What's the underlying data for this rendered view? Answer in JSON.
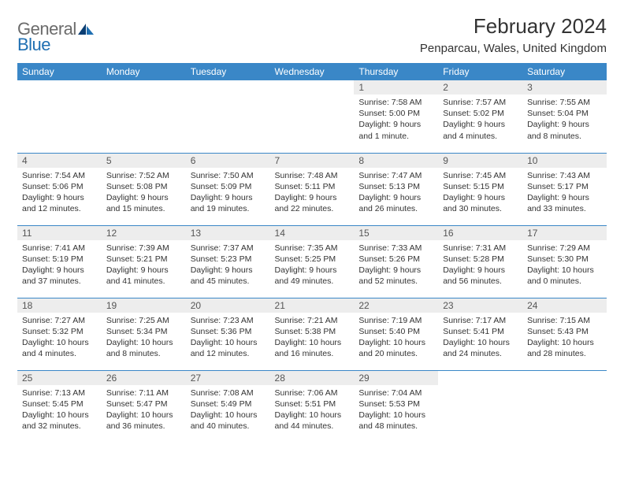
{
  "brand": {
    "gray": "General",
    "blue": "Blue"
  },
  "header": {
    "month_title": "February 2024",
    "location": "Penparcau, Wales, United Kingdom"
  },
  "colors": {
    "header_bg": "#3a87c7",
    "header_text": "#ffffff",
    "daynum_bg": "#ededed",
    "border": "#3a87c7",
    "logo_blue": "#1f6fb2",
    "logo_gray": "#6b6b6b"
  },
  "dow": [
    "Sunday",
    "Monday",
    "Tuesday",
    "Wednesday",
    "Thursday",
    "Friday",
    "Saturday"
  ],
  "weeks": [
    [
      {
        "n": "",
        "sr": "",
        "ss": "",
        "dl": ""
      },
      {
        "n": "",
        "sr": "",
        "ss": "",
        "dl": ""
      },
      {
        "n": "",
        "sr": "",
        "ss": "",
        "dl": ""
      },
      {
        "n": "",
        "sr": "",
        "ss": "",
        "dl": ""
      },
      {
        "n": "1",
        "sr": "Sunrise: 7:58 AM",
        "ss": "Sunset: 5:00 PM",
        "dl": "Daylight: 9 hours and 1 minute."
      },
      {
        "n": "2",
        "sr": "Sunrise: 7:57 AM",
        "ss": "Sunset: 5:02 PM",
        "dl": "Daylight: 9 hours and 4 minutes."
      },
      {
        "n": "3",
        "sr": "Sunrise: 7:55 AM",
        "ss": "Sunset: 5:04 PM",
        "dl": "Daylight: 9 hours and 8 minutes."
      }
    ],
    [
      {
        "n": "4",
        "sr": "Sunrise: 7:54 AM",
        "ss": "Sunset: 5:06 PM",
        "dl": "Daylight: 9 hours and 12 minutes."
      },
      {
        "n": "5",
        "sr": "Sunrise: 7:52 AM",
        "ss": "Sunset: 5:08 PM",
        "dl": "Daylight: 9 hours and 15 minutes."
      },
      {
        "n": "6",
        "sr": "Sunrise: 7:50 AM",
        "ss": "Sunset: 5:09 PM",
        "dl": "Daylight: 9 hours and 19 minutes."
      },
      {
        "n": "7",
        "sr": "Sunrise: 7:48 AM",
        "ss": "Sunset: 5:11 PM",
        "dl": "Daylight: 9 hours and 22 minutes."
      },
      {
        "n": "8",
        "sr": "Sunrise: 7:47 AM",
        "ss": "Sunset: 5:13 PM",
        "dl": "Daylight: 9 hours and 26 minutes."
      },
      {
        "n": "9",
        "sr": "Sunrise: 7:45 AM",
        "ss": "Sunset: 5:15 PM",
        "dl": "Daylight: 9 hours and 30 minutes."
      },
      {
        "n": "10",
        "sr": "Sunrise: 7:43 AM",
        "ss": "Sunset: 5:17 PM",
        "dl": "Daylight: 9 hours and 33 minutes."
      }
    ],
    [
      {
        "n": "11",
        "sr": "Sunrise: 7:41 AM",
        "ss": "Sunset: 5:19 PM",
        "dl": "Daylight: 9 hours and 37 minutes."
      },
      {
        "n": "12",
        "sr": "Sunrise: 7:39 AM",
        "ss": "Sunset: 5:21 PM",
        "dl": "Daylight: 9 hours and 41 minutes."
      },
      {
        "n": "13",
        "sr": "Sunrise: 7:37 AM",
        "ss": "Sunset: 5:23 PM",
        "dl": "Daylight: 9 hours and 45 minutes."
      },
      {
        "n": "14",
        "sr": "Sunrise: 7:35 AM",
        "ss": "Sunset: 5:25 PM",
        "dl": "Daylight: 9 hours and 49 minutes."
      },
      {
        "n": "15",
        "sr": "Sunrise: 7:33 AM",
        "ss": "Sunset: 5:26 PM",
        "dl": "Daylight: 9 hours and 52 minutes."
      },
      {
        "n": "16",
        "sr": "Sunrise: 7:31 AM",
        "ss": "Sunset: 5:28 PM",
        "dl": "Daylight: 9 hours and 56 minutes."
      },
      {
        "n": "17",
        "sr": "Sunrise: 7:29 AM",
        "ss": "Sunset: 5:30 PM",
        "dl": "Daylight: 10 hours and 0 minutes."
      }
    ],
    [
      {
        "n": "18",
        "sr": "Sunrise: 7:27 AM",
        "ss": "Sunset: 5:32 PM",
        "dl": "Daylight: 10 hours and 4 minutes."
      },
      {
        "n": "19",
        "sr": "Sunrise: 7:25 AM",
        "ss": "Sunset: 5:34 PM",
        "dl": "Daylight: 10 hours and 8 minutes."
      },
      {
        "n": "20",
        "sr": "Sunrise: 7:23 AM",
        "ss": "Sunset: 5:36 PM",
        "dl": "Daylight: 10 hours and 12 minutes."
      },
      {
        "n": "21",
        "sr": "Sunrise: 7:21 AM",
        "ss": "Sunset: 5:38 PM",
        "dl": "Daylight: 10 hours and 16 minutes."
      },
      {
        "n": "22",
        "sr": "Sunrise: 7:19 AM",
        "ss": "Sunset: 5:40 PM",
        "dl": "Daylight: 10 hours and 20 minutes."
      },
      {
        "n": "23",
        "sr": "Sunrise: 7:17 AM",
        "ss": "Sunset: 5:41 PM",
        "dl": "Daylight: 10 hours and 24 minutes."
      },
      {
        "n": "24",
        "sr": "Sunrise: 7:15 AM",
        "ss": "Sunset: 5:43 PM",
        "dl": "Daylight: 10 hours and 28 minutes."
      }
    ],
    [
      {
        "n": "25",
        "sr": "Sunrise: 7:13 AM",
        "ss": "Sunset: 5:45 PM",
        "dl": "Daylight: 10 hours and 32 minutes."
      },
      {
        "n": "26",
        "sr": "Sunrise: 7:11 AM",
        "ss": "Sunset: 5:47 PM",
        "dl": "Daylight: 10 hours and 36 minutes."
      },
      {
        "n": "27",
        "sr": "Sunrise: 7:08 AM",
        "ss": "Sunset: 5:49 PM",
        "dl": "Daylight: 10 hours and 40 minutes."
      },
      {
        "n": "28",
        "sr": "Sunrise: 7:06 AM",
        "ss": "Sunset: 5:51 PM",
        "dl": "Daylight: 10 hours and 44 minutes."
      },
      {
        "n": "29",
        "sr": "Sunrise: 7:04 AM",
        "ss": "Sunset: 5:53 PM",
        "dl": "Daylight: 10 hours and 48 minutes."
      },
      {
        "n": "",
        "sr": "",
        "ss": "",
        "dl": ""
      },
      {
        "n": "",
        "sr": "",
        "ss": "",
        "dl": ""
      }
    ]
  ]
}
